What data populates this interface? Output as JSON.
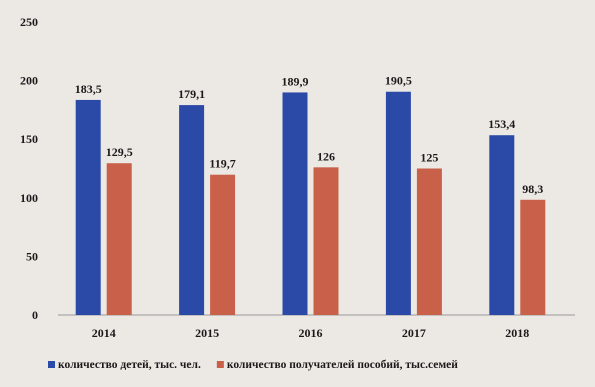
{
  "chart_data": {
    "type": "bar",
    "categories": [
      "2014",
      "2015",
      "2016",
      "2017",
      "2018"
    ],
    "series": [
      {
        "name": "количество детей, тыс. чел.",
        "values": [
          183.5,
          179.1,
          189.9,
          190.5,
          153.4
        ],
        "labels": [
          "183,5",
          "179,1",
          "189,9",
          "190,5",
          "153,4"
        ],
        "color": "#2b4aa8"
      },
      {
        "name": "количество получателей пособий, тыс.семей",
        "values": [
          129.5,
          119.7,
          126,
          125,
          98.3
        ],
        "labels": [
          "129,5",
          "119,7",
          "126",
          "125",
          "98,3"
        ],
        "color": "#c8604a"
      }
    ],
    "ylim": [
      0,
      250
    ],
    "yticks": [
      "0",
      "50",
      "100",
      "150",
      "200",
      "250"
    ],
    "grid": false,
    "legend_position": "bottom"
  }
}
